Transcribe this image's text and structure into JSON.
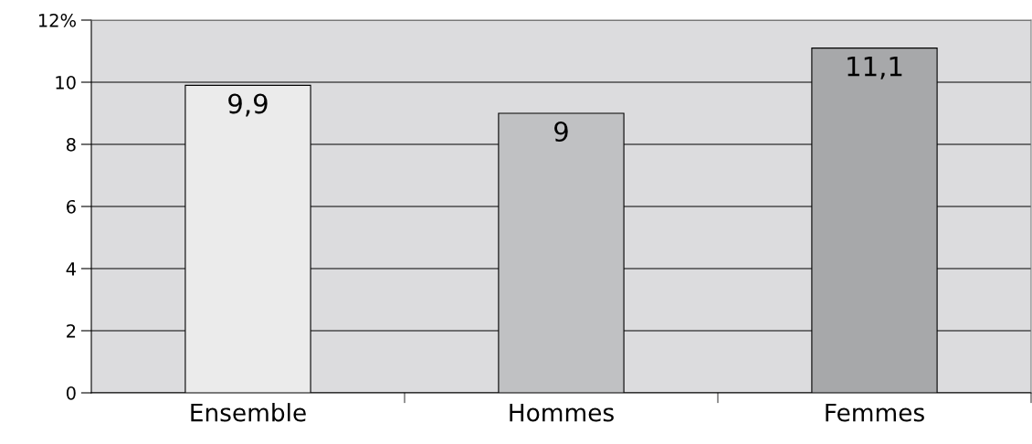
{
  "chart_data": {
    "type": "bar",
    "categories": [
      "Ensemble",
      "Hommes",
      "Femmes"
    ],
    "values": [
      9.9,
      9,
      11.1
    ],
    "value_labels": [
      "9,9",
      "9",
      "11,1"
    ],
    "colors": [
      "#ebebeb",
      "#c0c1c3",
      "#a7a8aa"
    ],
    "ylim": [
      0,
      12
    ],
    "yticks": [
      0,
      2,
      4,
      6,
      8,
      10,
      {
        "value": 12,
        "label": "12%"
      }
    ],
    "grid": "y",
    "legend": false
  }
}
